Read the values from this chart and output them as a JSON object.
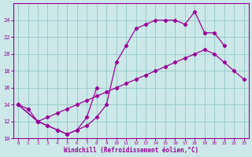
{
  "xlabel": "Windchill (Refroidissement éolien,°C)",
  "bg_color": "#cce8e8",
  "grid_color": "#99cccc",
  "line_color": "#990099",
  "curve1_x": [
    0,
    1,
    2,
    3,
    4,
    5,
    6,
    7,
    8,
    9,
    10,
    11,
    12,
    13,
    14,
    15,
    16,
    17,
    18,
    19,
    20,
    21
  ],
  "curve1_y": [
    14.0,
    13.5,
    12.0,
    11.5,
    11.0,
    10.5,
    11.0,
    11.5,
    12.5,
    14.0,
    19.0,
    21.0,
    23.0,
    23.5,
    24.0,
    24.0,
    24.0,
    23.5,
    25.0,
    22.5,
    22.5,
    21.0
  ],
  "curve2_x": [
    0,
    2,
    3,
    4,
    5,
    6,
    7,
    8
  ],
  "curve2_y": [
    14.0,
    12.0,
    11.5,
    11.0,
    10.5,
    11.0,
    12.5,
    16.0
  ],
  "curve3_x": [
    0,
    2,
    3,
    4,
    5,
    6,
    7,
    8,
    9,
    10,
    11,
    12,
    13,
    14,
    15,
    16,
    17,
    18,
    19,
    20,
    21,
    22,
    23
  ],
  "curve3_y": [
    14.0,
    12.0,
    12.5,
    13.0,
    13.5,
    14.0,
    14.5,
    15.0,
    15.5,
    16.0,
    16.5,
    17.0,
    17.5,
    18.0,
    18.5,
    19.0,
    19.5,
    20.0,
    20.5,
    20.0,
    19.0,
    18.0,
    17.0
  ],
  "xlim": [
    -0.5,
    23.5
  ],
  "ylim": [
    10,
    26
  ],
  "yticks": [
    10,
    12,
    14,
    16,
    18,
    20,
    22,
    24
  ],
  "xticks": [
    0,
    1,
    2,
    3,
    4,
    5,
    6,
    7,
    8,
    9,
    10,
    11,
    12,
    13,
    14,
    15,
    16,
    17,
    18,
    19,
    20,
    21,
    22,
    23
  ]
}
